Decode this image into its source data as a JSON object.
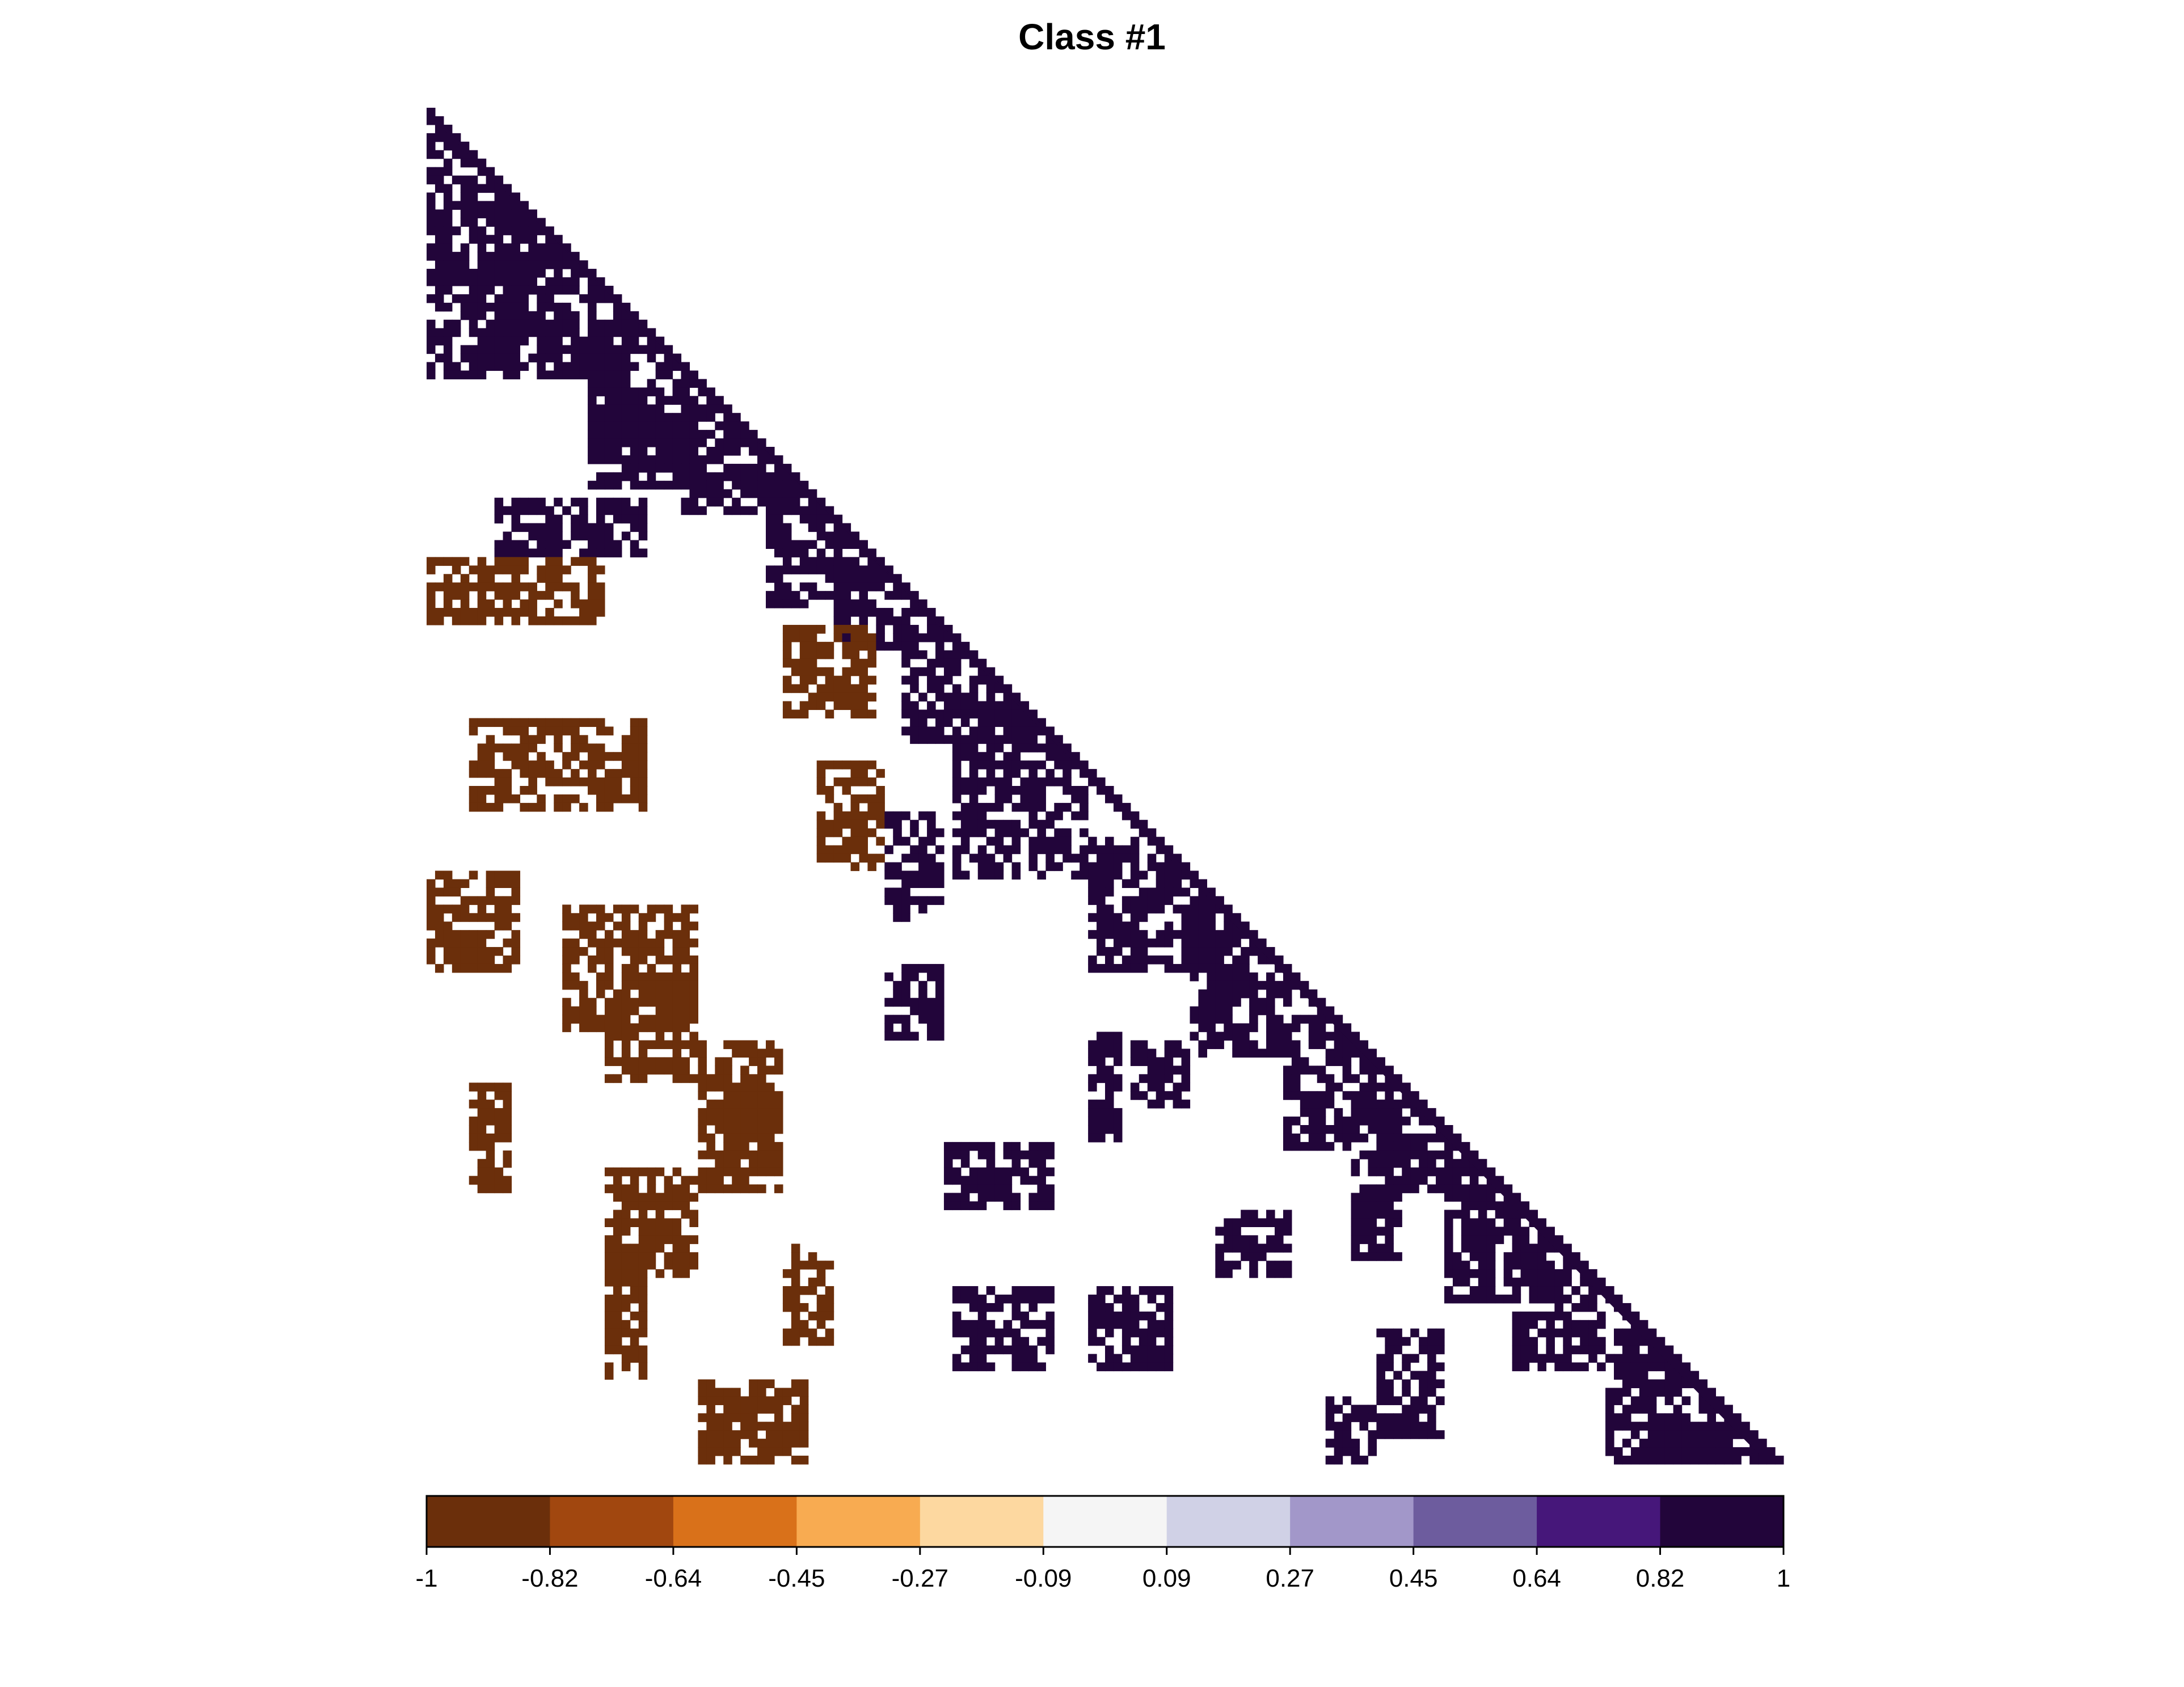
{
  "chart_data": {
    "type": "heatmap",
    "title": "Class #1",
    "layout": "lower-triangular correlation matrix",
    "xlabel": "",
    "ylabel": "",
    "color_scale": {
      "min": -1,
      "max": 1,
      "breaks": [
        -1,
        -0.82,
        -0.64,
        -0.45,
        -0.27,
        -0.09,
        0.09,
        0.27,
        0.45,
        0.64,
        0.82,
        1
      ],
      "tick_labels": [
        "-1",
        "-0.82",
        "-0.64",
        "-0.45",
        "-0.27",
        "-0.09",
        "0.09",
        "0.27",
        "0.45",
        "0.64",
        "0.82",
        "1"
      ],
      "colors": [
        "#6b2f0b",
        "#a1470f",
        "#d9711a",
        "#f8ab51",
        "#fdd8a0",
        "#f5f5f5",
        "#d0d1e6",
        "#a297c9",
        "#6d5c9e",
        "#46177a",
        "#22053a"
      ]
    },
    "legend_position": "bottom",
    "grid": false,
    "diagonal_value": 1,
    "block_correlations": [
      {
        "rows": [
          0.02,
          0.13
        ],
        "cols": [
          0.0,
          0.1
        ],
        "value": 0.95
      },
      {
        "rows": [
          0.1,
          0.2
        ],
        "cols": [
          0.05,
          0.13
        ],
        "value": 0.9
      },
      {
        "rows": [
          0.15,
          0.26
        ],
        "cols": [
          0.12,
          0.2
        ],
        "value": 0.9
      },
      {
        "rows": [
          0.22,
          0.3
        ],
        "cols": [
          0.19,
          0.27
        ],
        "value": 0.85
      },
      {
        "rows": [
          0.27,
          0.37
        ],
        "cols": [
          0.25,
          0.33
        ],
        "value": 0.9
      },
      {
        "rows": [
          0.33,
          0.4
        ],
        "cols": [
          0.3,
          0.36
        ],
        "value": 0.85
      },
      {
        "rows": [
          0.38,
          0.47
        ],
        "cols": [
          0.35,
          0.42
        ],
        "value": 0.95
      },
      {
        "rows": [
          0.44,
          0.57
        ],
        "cols": [
          0.39,
          0.49
        ],
        "value": 0.95
      },
      {
        "rows": [
          0.54,
          0.64
        ],
        "cols": [
          0.49,
          0.58
        ],
        "value": 0.95
      },
      {
        "rows": [
          0.6,
          0.7
        ],
        "cols": [
          0.56,
          0.64
        ],
        "value": 0.9
      },
      {
        "rows": [
          0.67,
          0.77
        ],
        "cols": [
          0.63,
          0.72
        ],
        "value": 0.95
      },
      {
        "rows": [
          0.73,
          0.8
        ],
        "cols": [
          0.7,
          0.76
        ],
        "value": 0.95
      },
      {
        "rows": [
          0.77,
          0.88
        ],
        "cols": [
          0.75,
          0.83
        ],
        "value": 0.95
      },
      {
        "rows": [
          0.85,
          0.93
        ],
        "cols": [
          0.8,
          0.87
        ],
        "value": 0.95
      },
      {
        "rows": [
          0.9,
          1.0
        ],
        "cols": [
          0.87,
          0.96
        ],
        "value": 0.95
      },
      {
        "rows": [
          0.97,
          1.0
        ],
        "cols": [
          0.92,
          1.0
        ],
        "value": 0.95
      },
      {
        "rows": [
          0.12,
          0.2
        ],
        "cols": [
          0.0,
          0.07
        ],
        "value": 0.9
      },
      {
        "rows": [
          0.16,
          0.2
        ],
        "cols": [
          0.08,
          0.13
        ],
        "value": 0.9
      },
      {
        "rows": [
          0.21,
          0.28
        ],
        "cols": [
          0.12,
          0.2
        ],
        "value": 0.9
      },
      {
        "rows": [
          0.29,
          0.33
        ],
        "cols": [
          0.05,
          0.16
        ],
        "value": 0.85
      },
      {
        "rows": [
          0.33,
          0.38
        ],
        "cols": [
          0.0,
          0.13
        ],
        "value": -0.95
      },
      {
        "rows": [
          0.38,
          0.45
        ],
        "cols": [
          0.26,
          0.33
        ],
        "value": -0.95
      },
      {
        "rows": [
          0.45,
          0.52
        ],
        "cols": [
          0.03,
          0.16
        ],
        "value": -0.95
      },
      {
        "rows": [
          0.48,
          0.56
        ],
        "cols": [
          0.29,
          0.34
        ],
        "value": -0.95
      },
      {
        "rows": [
          0.56,
          0.64
        ],
        "cols": [
          0.0,
          0.07
        ],
        "value": -0.95
      },
      {
        "rows": [
          0.59,
          0.68
        ],
        "cols": [
          0.1,
          0.2
        ],
        "value": -0.95
      },
      {
        "rows": [
          0.64,
          0.72
        ],
        "cols": [
          0.13,
          0.2
        ],
        "value": -0.95
      },
      {
        "rows": [
          0.69,
          0.76
        ],
        "cols": [
          0.2,
          0.26
        ],
        "value": -0.95
      },
      {
        "rows": [
          0.72,
          0.8
        ],
        "cols": [
          0.03,
          0.06
        ],
        "value": -0.95
      },
      {
        "rows": [
          0.74,
          0.8
        ],
        "cols": [
          0.2,
          0.26
        ],
        "value": -0.95
      },
      {
        "rows": [
          0.78,
          0.86
        ],
        "cols": [
          0.13,
          0.2
        ],
        "value": -0.95
      },
      {
        "rows": [
          0.84,
          0.94
        ],
        "cols": [
          0.13,
          0.16
        ],
        "value": -0.95
      },
      {
        "rows": [
          0.84,
          0.91
        ],
        "cols": [
          0.26,
          0.3
        ],
        "value": -0.95
      },
      {
        "rows": [
          0.94,
          1.0
        ],
        "cols": [
          0.2,
          0.28
        ],
        "value": -0.95
      },
      {
        "rows": [
          0.52,
          0.6
        ],
        "cols": [
          0.34,
          0.38
        ],
        "value": 0.9
      },
      {
        "rows": [
          0.63,
          0.69
        ],
        "cols": [
          0.34,
          0.38
        ],
        "value": 0.9
      },
      {
        "rows": [
          0.68,
          0.76
        ],
        "cols": [
          0.49,
          0.51
        ],
        "value": 0.9
      },
      {
        "rows": [
          0.69,
          0.74
        ],
        "cols": [
          0.52,
          0.56
        ],
        "value": 0.9
      },
      {
        "rows": [
          0.76,
          0.81
        ],
        "cols": [
          0.38,
          0.46
        ],
        "value": 0.9
      },
      {
        "rows": [
          0.81,
          0.86
        ],
        "cols": [
          0.58,
          0.64
        ],
        "value": 0.9
      },
      {
        "rows": [
          0.87,
          0.93
        ],
        "cols": [
          0.39,
          0.46
        ],
        "value": 0.9
      },
      {
        "rows": [
          0.87,
          0.93
        ],
        "cols": [
          0.49,
          0.55
        ],
        "value": 0.9
      },
      {
        "rows": [
          0.9,
          0.98
        ],
        "cols": [
          0.7,
          0.75
        ],
        "value": 0.9
      },
      {
        "rows": [
          0.95,
          1.0
        ],
        "cols": [
          0.66,
          0.7
        ],
        "value": 0.9
      },
      {
        "rows": [
          0.77,
          0.85
        ],
        "cols": [
          0.68,
          0.72
        ],
        "value": 0.9
      }
    ]
  }
}
